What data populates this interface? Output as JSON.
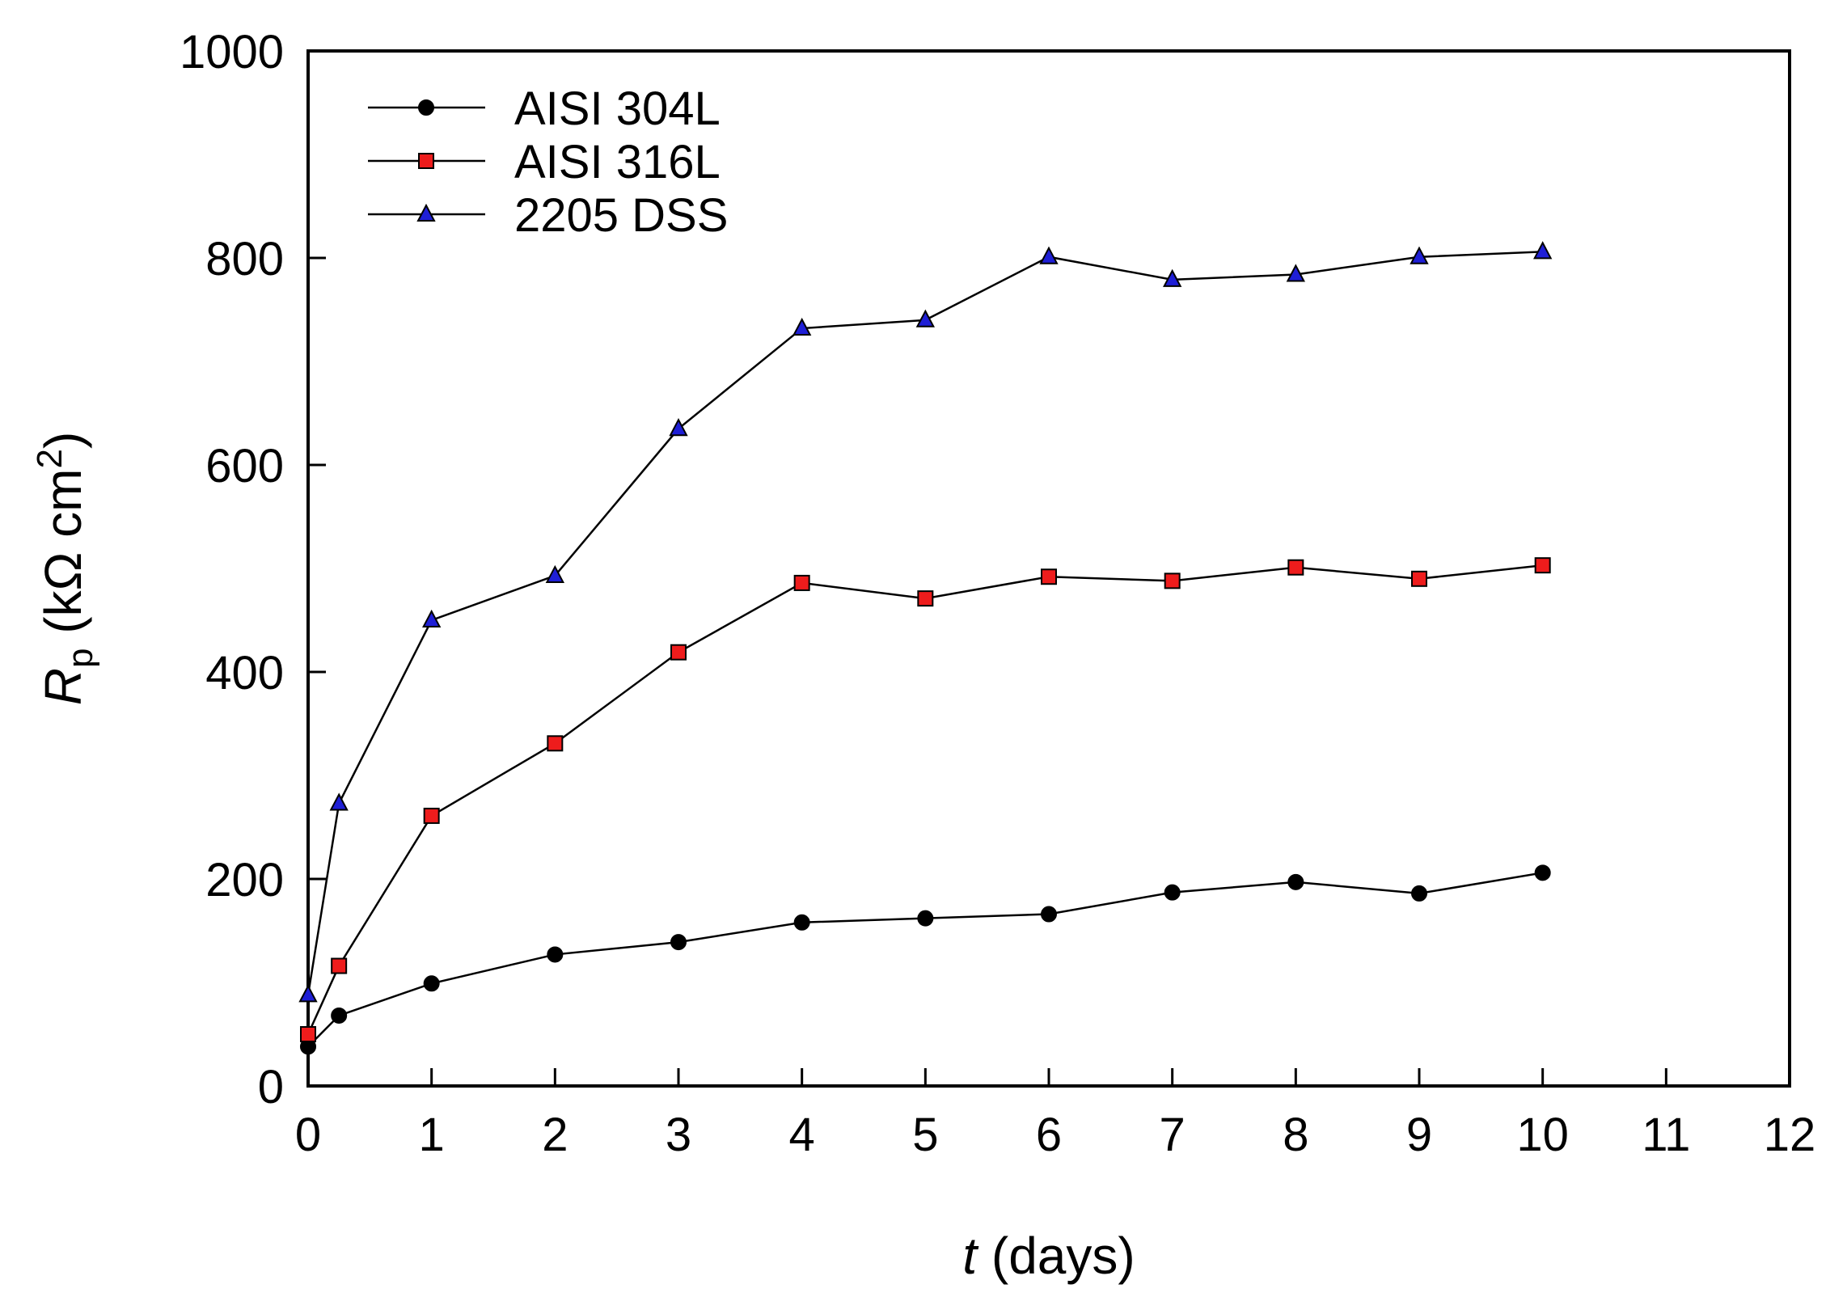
{
  "chart_data": {
    "type": "line",
    "title": "",
    "xlabel": {
      "var": "t",
      "unit": " (days)"
    },
    "ylabel": {
      "var": "R",
      "sub": "p",
      "unit_pre": " (kΩ cm",
      "sup": "2",
      "unit_post": ")"
    },
    "xlim": [
      0,
      12
    ],
    "ylim": [
      0,
      1000
    ],
    "xticks": [
      0,
      1,
      2,
      3,
      4,
      5,
      6,
      7,
      8,
      9,
      10,
      11,
      12
    ],
    "yticks": [
      0,
      200,
      400,
      600,
      800,
      1000
    ],
    "grid": false,
    "legend_position": "top-left",
    "series": [
      {
        "name": "AISI 304L",
        "marker": "circle",
        "color": "#000000",
        "x": [
          0,
          0.25,
          1,
          2,
          3,
          4,
          5,
          6,
          7,
          8,
          9,
          10
        ],
        "y": [
          38,
          68,
          99,
          127,
          139,
          158,
          162,
          166,
          187,
          197,
          186,
          206
        ]
      },
      {
        "name": "AISI 316L",
        "marker": "square",
        "color": "#ee1c1c",
        "x": [
          0,
          0.25,
          1,
          2,
          3,
          4,
          5,
          6,
          7,
          8,
          9,
          10
        ],
        "y": [
          50,
          116,
          261,
          331,
          419,
          486,
          471,
          492,
          488,
          501,
          490,
          503
        ]
      },
      {
        "name": "2205 DSS",
        "marker": "triangle",
        "color": "#1f1fd6",
        "x": [
          0,
          0.25,
          1,
          2,
          3,
          4,
          5,
          6,
          7,
          8,
          9,
          10
        ],
        "y": [
          88,
          273,
          450,
          493,
          635,
          732,
          740,
          801,
          779,
          784,
          801,
          806
        ]
      }
    ]
  }
}
